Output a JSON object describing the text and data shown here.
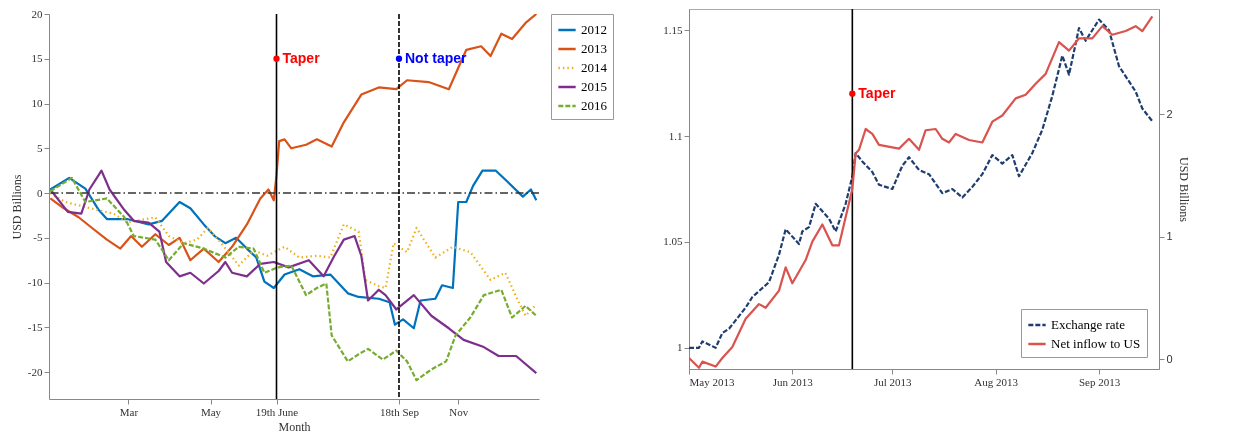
{
  "chart_data": [
    {
      "type": "line",
      "xlabel": "Month",
      "ylabel": "USD Billions",
      "xlim": [
        "--01-01",
        "--12-31"
      ],
      "ylim": [
        -23,
        20
      ],
      "xticks": [
        {
          "value": "--03-01",
          "label": "Mar"
        },
        {
          "value": "--05-01",
          "label": "May"
        },
        {
          "value": "--06-19",
          "label": "19th June"
        },
        {
          "value": "--09-18",
          "label": "18th Sep"
        },
        {
          "value": "--11-01",
          "label": "Nov"
        }
      ],
      "yticks": [
        -20,
        -15,
        -10,
        -5,
        0,
        5,
        10,
        15,
        20
      ],
      "legend": "right",
      "series": [
        {
          "name": "2012",
          "color": "#0072bd",
          "line_style": "solid",
          "x": [
            "--01-02",
            "--01-16",
            "--01-28",
            "--02-07",
            "--02-13",
            "--02-28",
            "--03-16",
            "--03-26",
            "--04-08",
            "--04-16",
            "--04-26",
            "--05-04",
            "--05-12",
            "--05-20",
            "--05-28",
            "--06-04",
            "--06-10",
            "--06-17",
            "--06-25",
            "--07-06",
            "--07-16",
            "--07-29",
            "--08-11",
            "--08-19",
            "--09-03",
            "--09-11",
            "--09-15",
            "--09-21",
            "--09-29",
            "--10-04",
            "--10-15",
            "--10-20",
            "--10-28",
            "--11-01",
            "--11-07",
            "--11-12",
            "--11-19",
            "--11-29",
            "--12-08",
            "--12-19",
            "--12-25",
            "--12-29"
          ],
          "values": [
            0.4,
            1.7,
            0.5,
            -1.9,
            -2.9,
            -2.9,
            -3.5,
            -3.1,
            -1,
            -1.7,
            -3.5,
            -4.8,
            -5.6,
            -5,
            -6.2,
            -7.2,
            -9.9,
            -10.6,
            -9.1,
            -8.5,
            -9.3,
            -9.1,
            -11.2,
            -11.6,
            -11.8,
            -12.2,
            -14.7,
            -14.1,
            -15.1,
            -12,
            -11.8,
            -10.3,
            -10.6,
            -1,
            -1,
            0.8,
            2.5,
            2.5,
            1.2,
            -0.4,
            0.4,
            -0.8
          ]
        },
        {
          "name": "2013",
          "color": "#d95319",
          "line_style": "solid",
          "x": [
            "--01-02",
            "--01-12",
            "--01-23",
            "--02-02",
            "--02-13",
            "--02-23",
            "--03-03",
            "--03-11",
            "--03-21",
            "--03-31",
            "--04-08",
            "--04-16",
            "--04-26",
            "--05-07",
            "--05-17",
            "--05-28",
            "--06-07",
            "--06-13",
            "--06-17",
            "--06-19",
            "--06-21",
            "--06-25",
            "--06-30",
            "--07-11",
            "--07-19",
            "--07-30",
            "--08-08",
            "--08-21",
            "--09-03",
            "--09-16",
            "--09-24",
            "--10-10",
            "--10-25",
            "--11-07",
            "--11-18",
            "--11-25",
            "--12-03",
            "--12-11",
            "--12-21",
            "--12-29"
          ],
          "values": [
            -0.6,
            -1.7,
            -2.7,
            -3.9,
            -5.2,
            -6.2,
            -4.8,
            -6,
            -4.6,
            -5.8,
            -5,
            -7.5,
            -6.2,
            -7.7,
            -6,
            -3.5,
            -0.6,
            0.4,
            -0.8,
            2,
            5.8,
            6,
            5,
            5.4,
            6,
            5.2,
            7.9,
            11,
            11.8,
            11.6,
            12.6,
            12.4,
            11.6,
            16,
            16.4,
            15.3,
            17.8,
            17.2,
            19,
            20
          ]
        },
        {
          "name": "2014",
          "color": "#edb120",
          "line_style": "dotted",
          "x": [
            "--01-02",
            "--01-13",
            "--02-09",
            "--02-18",
            "--02-28",
            "--03-21",
            "--03-31",
            "--04-11",
            "--04-21",
            "--04-29",
            "--05-09",
            "--05-22",
            "--06-02",
            "--06-12",
            "--06-25",
            "--07-06",
            "--07-19",
            "--07-29",
            "--08-08",
            "--08-19",
            "--08-24",
            "--09-03",
            "--09-08",
            "--09-14",
            "--09-24",
            "--10-01",
            "--10-15",
            "--10-28",
            "--11-10",
            "--11-25",
            "--12-06",
            "--12-16",
            "--12-21",
            "--12-28"
          ],
          "values": [
            0,
            -1,
            -2,
            -2.3,
            -3.3,
            -2.7,
            -4.8,
            -5.6,
            -5.2,
            -3.9,
            -5.6,
            -8.1,
            -6.4,
            -7,
            -6,
            -7.2,
            -7,
            -7.2,
            -3.5,
            -4.3,
            -9.7,
            -10.4,
            -10.6,
            -5.6,
            -6.6,
            -3.9,
            -7.2,
            -6,
            -6.6,
            -9.7,
            -8.9,
            -12.2,
            -13.7,
            -12.6
          ]
        },
        {
          "name": "2015",
          "color": "#7e2f8e",
          "line_style": "solid",
          "x": [
            "--01-02",
            "--01-15",
            "--01-25",
            "--01-31",
            "--02-09",
            "--02-15",
            "--02-26",
            "--03-05",
            "--03-16",
            "--03-24",
            "--03-29",
            "--04-08",
            "--04-16",
            "--04-26",
            "--05-07",
            "--05-12",
            "--05-17",
            "--05-28",
            "--06-07",
            "--06-17",
            "--06-28",
            "--07-13",
            "--07-24",
            "--08-01",
            "--08-08",
            "--08-16",
            "--08-21",
            "--08-26",
            "--09-03",
            "--09-08",
            "--09-16",
            "--09-29",
            "--10-12",
            "--10-25",
            "--11-05",
            "--11-20",
            "--12-01",
            "--12-14",
            "--12-29"
          ],
          "values": [
            0.4,
            -2.1,
            -2.3,
            0.4,
            2.5,
            0.4,
            -1.9,
            -3.1,
            -3.3,
            -4.3,
            -7.7,
            -9.3,
            -8.9,
            -10.1,
            -8.7,
            -7.7,
            -8.9,
            -9.3,
            -7.9,
            -7.7,
            -8.3,
            -7.5,
            -9.3,
            -7,
            -5.2,
            -4.8,
            -7,
            -12,
            -10.8,
            -11.4,
            -13,
            -11.4,
            -13.7,
            -15.1,
            -16.4,
            -17.2,
            -18.2,
            -18.2,
            -20.1
          ]
        },
        {
          "name": "2016",
          "color": "#77ac30",
          "line_style": "dashed",
          "x": [
            "--01-02",
            "--01-18",
            "--01-28",
            "--02-13",
            "--02-26",
            "--03-05",
            "--03-21",
            "--03-31",
            "--04-11",
            "--04-26",
            "--05-12",
            "--05-22",
            "--06-02",
            "--06-10",
            "--06-20",
            "--06-30",
            "--07-11",
            "--07-19",
            "--07-26",
            "--07-30",
            "--08-11",
            "--08-19",
            "--08-26",
            "--09-06",
            "--09-16",
            "--09-24",
            "--10-01",
            "--10-12",
            "--10-23",
            "--10-30",
            "--11-10",
            "--11-20",
            "--12-03",
            "--12-11",
            "--12-21",
            "--12-29"
          ],
          "values": [
            0.2,
            1.7,
            -1,
            -0.6,
            -2.7,
            -4.8,
            -5.2,
            -7.5,
            -5.6,
            -6.2,
            -7.2,
            -6,
            -6.2,
            -8.9,
            -8.3,
            -8.1,
            -11.4,
            -10.6,
            -10.1,
            -15.9,
            -18.8,
            -18,
            -17.4,
            -18.6,
            -17.6,
            -18.8,
            -20.9,
            -19.7,
            -18.8,
            -15.9,
            -13.9,
            -11.4,
            -10.8,
            -13.9,
            -12.6,
            -13.7
          ]
        }
      ],
      "ref_lines": [
        {
          "axis": "y",
          "value": 0,
          "color": "#333333",
          "line_style": "dashdot"
        },
        {
          "axis": "x",
          "value": "--06-19",
          "color": "#000000",
          "line_style": "solid"
        },
        {
          "axis": "x",
          "value": "--09-18",
          "color": "#000000",
          "line_style": "dashed"
        }
      ],
      "annotations": [
        {
          "text": "Taper",
          "x": "--06-19",
          "y": 15
        },
        {
          "text": "Not taper",
          "x": "--09-18",
          "y": 15
        }
      ]
    },
    {
      "type": "line",
      "y2label": "USD Billions",
      "xlim": [
        "2013-05-01",
        "2013-09-19"
      ],
      "ylim": [
        0.99,
        1.16
      ],
      "y2lim": [
        -0.08,
        2.86
      ],
      "xticks": [
        {
          "value": "2013-05-01",
          "label": "May 2013"
        },
        {
          "value": "2013-06-01",
          "label": "Jun 2013"
        },
        {
          "value": "2013-07-01",
          "label": "Jul 2013"
        },
        {
          "value": "2013-08-01",
          "label": "Aug 2013"
        },
        {
          "value": "2013-09-01",
          "label": "Sep 2013"
        }
      ],
      "yticks": [
        1,
        1.05,
        1.1,
        1.15
      ],
      "y2ticks": [
        0,
        1,
        2
      ],
      "legend": "bottom right",
      "series": [
        {
          "name": "Exchange rate",
          "color": "#1f3d6e",
          "line_style": "dashed",
          "x": [
            "2013-05-01",
            "2013-05-04",
            "2013-05-05",
            "2013-05-09",
            "2013-05-11",
            "2013-05-13",
            "2013-05-18",
            "2013-05-20",
            "2013-05-25",
            "2013-05-28",
            "2013-05-30",
            "2013-06-03",
            "2013-06-04",
            "2013-06-06",
            "2013-06-08",
            "2013-06-12",
            "2013-06-14",
            "2013-06-17",
            "2013-06-19",
            "2013-06-20",
            "2013-06-22",
            "2013-06-25",
            "2013-06-27",
            "2013-07-01",
            "2013-07-04",
            "2013-07-06",
            "2013-07-09",
            "2013-07-12",
            "2013-07-16",
            "2013-07-19",
            "2013-07-22",
            "2013-07-25",
            "2013-07-28",
            "2013-07-31",
            "2013-08-03",
            "2013-08-06",
            "2013-08-08",
            "2013-08-12",
            "2013-08-15",
            "2013-08-18",
            "2013-08-21",
            "2013-08-23",
            "2013-08-26",
            "2013-08-28",
            "2013-09-01",
            "2013-09-04",
            "2013-09-07",
            "2013-09-12",
            "2013-09-14",
            "2013-09-17"
          ],
          "values": [
            1.0,
            1.0,
            1.003,
            1.0,
            1.007,
            1.009,
            1.019,
            1.024,
            1.031,
            1.044,
            1.056,
            1.049,
            1.055,
            1.057,
            1.068,
            1.061,
            1.055,
            1.068,
            1.081,
            1.092,
            1.088,
            1.083,
            1.077,
            1.075,
            1.086,
            1.09,
            1.084,
            1.082,
            1.073,
            1.075,
            1.071,
            1.076,
            1.082,
            1.091,
            1.087,
            1.091,
            1.081,
            1.092,
            1.103,
            1.119,
            1.138,
            1.129,
            1.151,
            1.145,
            1.155,
            1.15,
            1.133,
            1.121,
            1.113,
            1.107
          ]
        },
        {
          "name": "Net inflow to US",
          "color": "#d9534f",
          "line_style": "solid",
          "axis": "y2",
          "x": [
            "2013-05-01",
            "2013-05-04",
            "2013-05-05",
            "2013-05-09",
            "2013-05-11",
            "2013-05-14",
            "2013-05-18",
            "2013-05-22",
            "2013-05-24",
            "2013-05-28",
            "2013-05-30",
            "2013-06-01",
            "2013-06-05",
            "2013-06-07",
            "2013-06-10",
            "2013-06-13",
            "2013-06-15",
            "2013-06-19",
            "2013-06-20",
            "2013-06-21",
            "2013-06-23",
            "2013-06-25",
            "2013-06-27",
            "2013-07-03",
            "2013-07-06",
            "2013-07-09",
            "2013-07-11",
            "2013-07-14",
            "2013-07-16",
            "2013-07-18",
            "2013-07-20",
            "2013-07-24",
            "2013-07-28",
            "2013-07-31",
            "2013-08-03",
            "2013-08-07",
            "2013-08-10",
            "2013-08-13",
            "2013-08-16",
            "2013-08-20",
            "2013-08-23",
            "2013-08-26",
            "2013-08-30",
            "2013-09-02",
            "2013-09-05",
            "2013-09-09",
            "2013-09-12",
            "2013-09-14",
            "2013-09-17"
          ],
          "values": [
            0.01,
            -0.07,
            -0.02,
            -0.06,
            0.01,
            0.1,
            0.33,
            0.45,
            0.42,
            0.56,
            0.75,
            0.62,
            0.81,
            0.96,
            1.1,
            0.93,
            0.93,
            1.39,
            1.68,
            1.71,
            1.88,
            1.84,
            1.75,
            1.72,
            1.8,
            1.71,
            1.87,
            1.88,
            1.8,
            1.77,
            1.84,
            1.79,
            1.77,
            1.94,
            1.99,
            2.13,
            2.16,
            2.25,
            2.33,
            2.59,
            2.52,
            2.62,
            2.62,
            2.72,
            2.65,
            2.68,
            2.72,
            2.68,
            2.8
          ]
        }
      ],
      "ref_lines": [
        {
          "axis": "x",
          "value": "2013-06-19",
          "color": "#000000",
          "line_style": "solid"
        }
      ],
      "annotations": [
        {
          "text": "Taper",
          "x": "2013-06-19",
          "y": 1.12
        }
      ]
    }
  ]
}
